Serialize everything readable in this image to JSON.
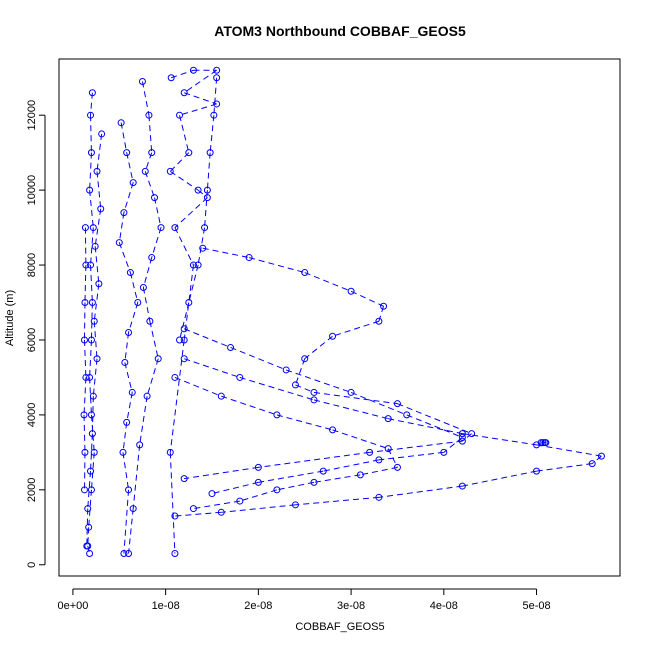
{
  "chart_data": {
    "type": "scatter",
    "title": "ATOM3 Northbound COBBAF_GEOS5",
    "xlabel": "COBBAF_GEOS5",
    "ylabel": "Altitude (m)",
    "xlim": [
      -1.5e-09,
      5.9e-08
    ],
    "ylim": [
      -300,
      13500
    ],
    "xticks": [
      {
        "value": 0,
        "label": "0e+00"
      },
      {
        "value": 1e-08,
        "label": "1e-08"
      },
      {
        "value": 2e-08,
        "label": "2e-08"
      },
      {
        "value": 3e-08,
        "label": "3e-08"
      },
      {
        "value": 4e-08,
        "label": "4e-08"
      },
      {
        "value": 5e-08,
        "label": "5e-08"
      }
    ],
    "yticks": [
      {
        "value": 0,
        "label": "0"
      },
      {
        "value": 2000,
        "label": "2000"
      },
      {
        "value": 4000,
        "label": "4000"
      },
      {
        "value": 6000,
        "label": "6000"
      },
      {
        "value": 8000,
        "label": "8000"
      },
      {
        "value": 10000,
        "label": "10000"
      },
      {
        "value": 12000,
        "label": "12000"
      }
    ],
    "marker": "open-circle",
    "color": "#0000ff",
    "series": [
      {
        "x": [
          2.1e-09,
          1.9e-09,
          2e-09,
          1.8e-09,
          2.2e-09,
          1.9e-09,
          2.1e-09,
          2e-09,
          1.8e-09,
          2e-09,
          2.3e-09,
          2e-09,
          1.7e-09,
          1.6e-09,
          1.8e-09
        ],
        "y": [
          12600,
          12000,
          11000,
          10000,
          9000,
          8000,
          7000,
          6000,
          5000,
          4000,
          3000,
          2000,
          1000,
          500,
          300
        ]
      },
      {
        "x": [
          3.1e-09,
          2.6e-09,
          3e-09,
          2.4e-09,
          2.8e-09,
          2.3e-09,
          2.6e-09,
          2.2e-09,
          2.1e-09,
          1.9e-09,
          1.6e-09,
          1.5e-09
        ],
        "y": [
          11500,
          10500,
          9500,
          8500,
          7500,
          6500,
          5500,
          4500,
          3500,
          2500,
          1500,
          500
        ]
      },
      {
        "x": [
          1.35e-09,
          1.4e-09,
          1.3e-09,
          1.25e-09,
          1.4e-09,
          1.2e-09,
          1.3e-09,
          1.25e-09
        ],
        "y": [
          9000,
          8000,
          7000,
          6000,
          5000,
          4000,
          3000,
          2000
        ]
      },
      {
        "x": [
          5.2e-09,
          5.8e-09,
          6.5e-09,
          5.5e-09,
          5e-09,
          6.2e-09,
          7e-09,
          6e-09,
          5.6e-09,
          6.4e-09,
          5.8e-09,
          5.4e-09,
          6e-09,
          5.5e-09
        ],
        "y": [
          11800,
          11000,
          10200,
          9400,
          8600,
          7800,
          7000,
          6200,
          5400,
          4600,
          3800,
          3000,
          2000,
          300
        ]
      },
      {
        "x": [
          7.5e-09,
          8.2e-09,
          8.5e-09,
          7.8e-09,
          8.8e-09,
          9.5e-09,
          8.5e-09,
          7.6e-09,
          8.3e-09,
          9.2e-09,
          8e-09,
          7.2e-09,
          6.5e-09,
          6e-09
        ],
        "y": [
          12900,
          12000,
          11000,
          10500,
          9800,
          9000,
          8200,
          7400,
          6500,
          5500,
          4500,
          3200,
          1500,
          300
        ]
      },
      {
        "x": [
          1.06e-08,
          1.3e-08,
          1.55e-08,
          1.2e-08,
          1.55e-08,
          1.15e-08,
          1.25e-08,
          1.05e-08,
          1.35e-08,
          1.45e-08,
          1.1e-08,
          1.3e-08,
          1.2e-08,
          1.05e-08,
          1.1e-08
        ],
        "y": [
          13000,
          13200,
          13200,
          12600,
          12300,
          12000,
          11000,
          10500,
          10000,
          9800,
          9000,
          8000,
          6000,
          3000,
          300
        ]
      },
      {
        "x": [
          1.55e-08,
          1.52e-08,
          1.48e-08,
          1.45e-08,
          1.42e-08,
          1.35e-08,
          1.25e-08,
          1.15e-08
        ],
        "y": [
          13000,
          12000,
          11000,
          10000,
          9000,
          8000,
          7000,
          6000
        ]
      },
      {
        "x": [
          1.4e-08,
          1.9e-08,
          2.5e-08,
          3e-08,
          3.35e-08,
          3.3e-08,
          2.8e-08,
          2.5e-08,
          2.4e-08,
          2.6e-08,
          3.5e-08,
          4.3e-08,
          4.2e-08,
          3.2e-08,
          2e-08,
          1.2e-08
        ],
        "y": [
          8450,
          8200,
          7800,
          7300,
          6900,
          6500,
          6100,
          5500,
          4800,
          4600,
          4300,
          3500,
          3300,
          3000,
          2600,
          2300
        ]
      },
      {
        "x": [
          1.2e-08,
          1.8e-08,
          2.6e-08,
          3.4e-08,
          4.2e-08,
          5e-08,
          5.7e-08,
          5.6e-08,
          5e-08,
          4.2e-08,
          3.3e-08,
          2.4e-08,
          1.6e-08,
          1.1e-08
        ],
        "y": [
          5500,
          5000,
          4400,
          3900,
          3500,
          3200,
          2900,
          2700,
          2500,
          2100,
          1800,
          1600,
          1400,
          1300
        ]
      },
      {
        "x": [
          1.2e-08,
          1.7e-08,
          2.3e-08,
          3e-08,
          3.6e-08,
          4.2e-08,
          4e-08,
          3.3e-08,
          2.7e-08,
          2e-08,
          1.5e-08
        ],
        "y": [
          6300,
          5800,
          5200,
          4600,
          4000,
          3400,
          3000,
          2800,
          2500,
          2200,
          1900
        ]
      },
      {
        "x": [
          1.1e-08,
          1.6e-08,
          2.2e-08,
          2.8e-08,
          3.4e-08,
          3.5e-08,
          3.1e-08,
          2.6e-08,
          2.2e-08,
          1.8e-08,
          1.3e-08
        ],
        "y": [
          5000,
          4500,
          4000,
          3600,
          3100,
          2600,
          2400,
          2200,
          2000,
          1700,
          1500
        ]
      },
      {
        "x": [
          5.05e-08,
          5.07e-08,
          5.09e-08,
          5.1e-08
        ],
        "y": [
          3260,
          3260,
          3260,
          3260
        ]
      }
    ]
  }
}
